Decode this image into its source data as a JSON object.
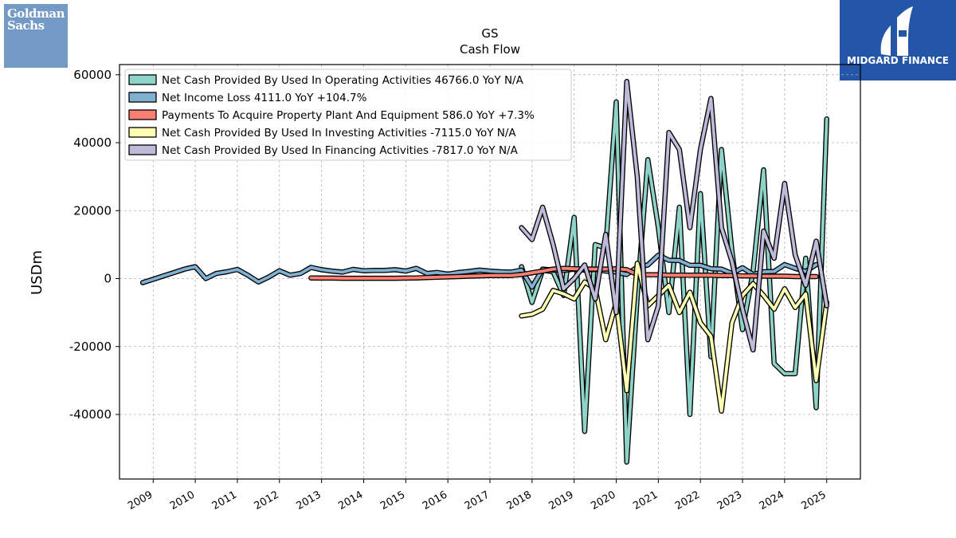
{
  "logos": {
    "left": {
      "line1": "Goldman",
      "line2": "Sachs",
      "color": "#7399c6"
    },
    "right": {
      "text": "MIDGARD FINANCE",
      "color": "#2456a8"
    }
  },
  "chart_data": {
    "type": "line",
    "title": "GS",
    "subtitle": "Cash Flow",
    "xlabel": "",
    "ylabel": "USDm",
    "xlim": [
      2008.2,
      2025.8
    ],
    "ylim": [
      -59000,
      63000
    ],
    "yticks": [
      -40000,
      -20000,
      0,
      20000,
      40000,
      60000
    ],
    "xticks": [
      "2009",
      "2010",
      "2011",
      "2012",
      "2013",
      "2014",
      "2015",
      "2016",
      "2017",
      "2018",
      "2019",
      "2020",
      "2021",
      "2022",
      "2023",
      "2024",
      "2025"
    ],
    "grid": true,
    "legend_position": "top-left",
    "series": [
      {
        "name": "Net Cash Provided By Used In Operating Activities",
        "legend_label": "Net Cash Provided By Used In Operating Activities  46766.0 YoY N/A",
        "color": "#8dd3c7",
        "points": [
          [
            2017.75,
            3500
          ],
          [
            2018.0,
            -7000
          ],
          [
            2018.25,
            2500
          ],
          [
            2018.5,
            2000
          ],
          [
            2018.75,
            -5000
          ],
          [
            2019.0,
            18000
          ],
          [
            2019.25,
            -45000
          ],
          [
            2019.5,
            10000
          ],
          [
            2019.75,
            9000
          ],
          [
            2020.0,
            52000
          ],
          [
            2020.25,
            -54000
          ],
          [
            2020.5,
            -5000
          ],
          [
            2020.75,
            35000
          ],
          [
            2021.0,
            15000
          ],
          [
            2021.25,
            -10000
          ],
          [
            2021.5,
            21000
          ],
          [
            2021.75,
            -40000
          ],
          [
            2022.0,
            25000
          ],
          [
            2022.25,
            -23000
          ],
          [
            2022.5,
            38000
          ],
          [
            2022.75,
            8000
          ],
          [
            2023.0,
            -15000
          ],
          [
            2023.25,
            2000
          ],
          [
            2023.5,
            32000
          ],
          [
            2023.75,
            -25000
          ],
          [
            2024.0,
            -28000
          ],
          [
            2024.25,
            -28000
          ],
          [
            2024.5,
            6000
          ],
          [
            2024.75,
            -38000
          ],
          [
            2025.0,
            47000
          ]
        ]
      },
      {
        "name": "Net Income Loss",
        "legend_label": "Net Income Loss  4111.0 YoY +104.7%",
        "color": "#80b1d3",
        "points": [
          [
            2008.75,
            -1200
          ],
          [
            2009.0,
            -200
          ],
          [
            2009.25,
            800
          ],
          [
            2009.5,
            1800
          ],
          [
            2009.75,
            2800
          ],
          [
            2010.0,
            3500
          ],
          [
            2010.25,
            0
          ],
          [
            2010.5,
            1500
          ],
          [
            2010.75,
            2000
          ],
          [
            2011.0,
            2700
          ],
          [
            2011.25,
            1000
          ],
          [
            2011.5,
            -1000
          ],
          [
            2011.75,
            500
          ],
          [
            2012.0,
            2300
          ],
          [
            2012.25,
            1000
          ],
          [
            2012.5,
            1500
          ],
          [
            2012.75,
            3300
          ],
          [
            2013.0,
            2600
          ],
          [
            2013.25,
            2200
          ],
          [
            2013.5,
            1900
          ],
          [
            2013.75,
            2700
          ],
          [
            2014.0,
            2300
          ],
          [
            2014.25,
            2400
          ],
          [
            2014.5,
            2400
          ],
          [
            2014.75,
            2600
          ],
          [
            2015.0,
            2200
          ],
          [
            2015.25,
            3000
          ],
          [
            2015.5,
            1500
          ],
          [
            2015.75,
            1800
          ],
          [
            2016.0,
            1300
          ],
          [
            2016.25,
            1800
          ],
          [
            2016.5,
            2100
          ],
          [
            2016.75,
            2500
          ],
          [
            2017.0,
            2200
          ],
          [
            2017.25,
            2000
          ],
          [
            2017.5,
            1900
          ],
          [
            2017.75,
            2500
          ],
          [
            2018.0,
            -2500
          ],
          [
            2018.25,
            2800
          ],
          [
            2018.5,
            2500
          ],
          [
            2018.75,
            2400
          ],
          [
            2019.0,
            2800
          ],
          [
            2019.25,
            2500
          ],
          [
            2019.5,
            2700
          ],
          [
            2019.75,
            2200
          ],
          [
            2020.0,
            1900
          ],
          [
            2020.25,
            1200
          ],
          [
            2020.5,
            3400
          ],
          [
            2020.75,
            4000
          ],
          [
            2021.0,
            6900
          ],
          [
            2021.25,
            5400
          ],
          [
            2021.5,
            5300
          ],
          [
            2021.75,
            3900
          ],
          [
            2022.0,
            3900
          ],
          [
            2022.25,
            2900
          ],
          [
            2022.5,
            2800
          ],
          [
            2022.75,
            1500
          ],
          [
            2023.0,
            3200
          ],
          [
            2023.25,
            1200
          ],
          [
            2023.5,
            2000
          ],
          [
            2023.75,
            2100
          ],
          [
            2024.0,
            4100
          ],
          [
            2024.25,
            3000
          ],
          [
            2024.5,
            2100
          ],
          [
            2024.75,
            4100
          ]
        ]
      },
      {
        "name": "Payments To Acquire Property Plant And Equipment",
        "legend_label": "Payments To Acquire Property Plant And Equipment  586.0 YoY +7.3%",
        "color": "#fb8072",
        "points": [
          [
            2012.75,
            200
          ],
          [
            2013.0,
            150
          ],
          [
            2013.25,
            150
          ],
          [
            2013.5,
            100
          ],
          [
            2013.75,
            100
          ],
          [
            2014.0,
            100
          ],
          [
            2014.25,
            100
          ],
          [
            2014.5,
            100
          ],
          [
            2014.75,
            100
          ],
          [
            2015.0,
            150
          ],
          [
            2015.25,
            200
          ],
          [
            2015.5,
            300
          ],
          [
            2015.75,
            400
          ],
          [
            2016.0,
            500
          ],
          [
            2016.25,
            600
          ],
          [
            2016.5,
            700
          ],
          [
            2016.75,
            800
          ],
          [
            2017.0,
            900
          ],
          [
            2017.25,
            900
          ],
          [
            2017.5,
            900
          ],
          [
            2017.75,
            1200
          ],
          [
            2018.0,
            1700
          ],
          [
            2018.25,
            2200
          ],
          [
            2018.5,
            2800
          ],
          [
            2018.75,
            3000
          ],
          [
            2019.0,
            2900
          ],
          [
            2019.25,
            2800
          ],
          [
            2019.5,
            2800
          ],
          [
            2019.75,
            2800
          ],
          [
            2020.0,
            2900
          ],
          [
            2020.25,
            2600
          ],
          [
            2020.5,
            1200
          ],
          [
            2020.75,
            1100
          ],
          [
            2021.0,
            1100
          ],
          [
            2021.25,
            1000
          ],
          [
            2021.5,
            1000
          ],
          [
            2021.75,
            1000
          ],
          [
            2022.0,
            1000
          ],
          [
            2022.25,
            1000
          ],
          [
            2022.5,
            900
          ],
          [
            2022.75,
            900
          ],
          [
            2023.0,
            800
          ],
          [
            2023.25,
            800
          ],
          [
            2023.5,
            700
          ],
          [
            2023.75,
            700
          ],
          [
            2024.0,
            700
          ],
          [
            2024.25,
            600
          ],
          [
            2024.5,
            600
          ],
          [
            2024.75,
            600
          ]
        ]
      },
      {
        "name": "Net Cash Provided By Used In Investing Activities",
        "legend_label": "Net Cash Provided By Used In Investing Activities  -7115.0 YoY N/A",
        "color": "#ffffb3",
        "points": [
          [
            2017.75,
            -11000
          ],
          [
            2018.0,
            -10500
          ],
          [
            2018.25,
            -9000
          ],
          [
            2018.5,
            -3500
          ],
          [
            2018.75,
            -4500
          ],
          [
            2019.0,
            -6000
          ],
          [
            2019.25,
            -1000
          ],
          [
            2019.5,
            -3000
          ],
          [
            2019.75,
            -18000
          ],
          [
            2020.0,
            -7000
          ],
          [
            2020.25,
            -33000
          ],
          [
            2020.5,
            4500
          ],
          [
            2020.75,
            -8000
          ],
          [
            2021.0,
            -5000
          ],
          [
            2021.25,
            -2000
          ],
          [
            2021.5,
            -10000
          ],
          [
            2021.75,
            -4000
          ],
          [
            2022.0,
            -13000
          ],
          [
            2022.25,
            -17000
          ],
          [
            2022.5,
            -39000
          ],
          [
            2022.75,
            -13000
          ],
          [
            2023.0,
            -5000
          ],
          [
            2023.25,
            -1500
          ],
          [
            2023.5,
            -5000
          ],
          [
            2023.75,
            -9000
          ],
          [
            2024.0,
            -3000
          ],
          [
            2024.25,
            -8500
          ],
          [
            2024.5,
            -4500
          ],
          [
            2024.75,
            -30000
          ],
          [
            2025.0,
            -7000
          ]
        ]
      },
      {
        "name": "Net Cash Provided By Used In Financing Activities",
        "legend_label": "Net Cash Provided By Used In Financing Activities  -7817.0 YoY N/A",
        "color": "#bebada",
        "points": [
          [
            2017.75,
            15000
          ],
          [
            2018.0,
            11500
          ],
          [
            2018.25,
            21000
          ],
          [
            2018.5,
            10000
          ],
          [
            2018.75,
            -3000
          ],
          [
            2019.0,
            0
          ],
          [
            2019.25,
            4000
          ],
          [
            2019.5,
            -6000
          ],
          [
            2019.75,
            13000
          ],
          [
            2020.0,
            -10000
          ],
          [
            2020.25,
            58000
          ],
          [
            2020.5,
            30000
          ],
          [
            2020.75,
            -18000
          ],
          [
            2021.0,
            -8000
          ],
          [
            2021.25,
            43000
          ],
          [
            2021.5,
            38000
          ],
          [
            2021.75,
            15000
          ],
          [
            2022.0,
            38000
          ],
          [
            2022.25,
            53000
          ],
          [
            2022.5,
            15000
          ],
          [
            2022.75,
            5000
          ],
          [
            2023.0,
            -9000
          ],
          [
            2023.25,
            -21000
          ],
          [
            2023.5,
            14000
          ],
          [
            2023.75,
            6000
          ],
          [
            2024.0,
            28000
          ],
          [
            2024.25,
            7000
          ],
          [
            2024.5,
            -2000
          ],
          [
            2024.75,
            11000
          ],
          [
            2025.0,
            -8000
          ]
        ]
      }
    ]
  }
}
